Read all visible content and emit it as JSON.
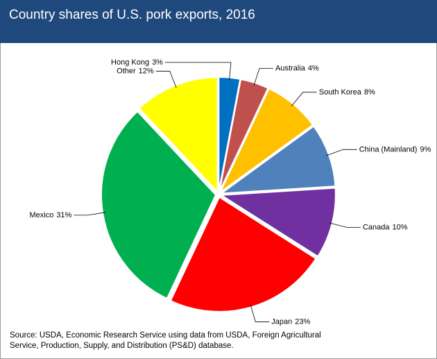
{
  "chart_data": {
    "type": "pie",
    "title": "Country shares of U.S. pork exports, 2016",
    "categories": [
      "Hong Kong",
      "Australia",
      "South Korea",
      "China (Mainland)",
      "Canada",
      "Japan",
      "Mexico",
      "Other"
    ],
    "values": [
      3,
      4,
      8,
      9,
      10,
      23,
      31,
      12
    ],
    "value_labels": [
      "3%",
      "4%",
      "8%",
      "9%",
      "10%",
      "23%",
      "31%",
      "12%"
    ],
    "colors": [
      "#0070c0",
      "#c0504d",
      "#ffc000",
      "#4f81bd",
      "#7030a0",
      "#ff0000",
      "#00b050",
      "#ffff00"
    ],
    "source": "Source: USDA, Economic Research Service using data from USDA, Foreign Agricultural Service, Production, Supply, and Distribution (PS&D) database."
  }
}
